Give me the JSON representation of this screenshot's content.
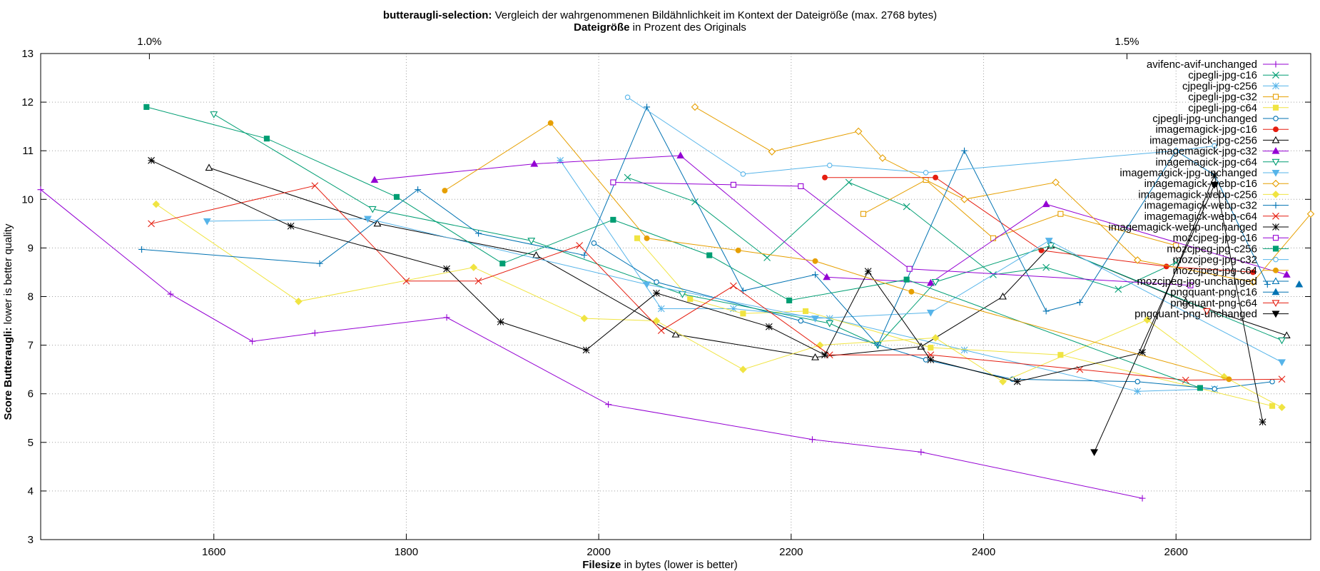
{
  "chart_data": {
    "type": "line",
    "title_bold": "butteraugli-selection:",
    "title_rest": " Vergleich der wahrgenommenen Bildähnlichkeit im Kontext der Dateigröße (max. 2768 bytes)",
    "x2label_bold": "Dateigröße",
    "x2label_rest": " in Prozent des Originals",
    "xlabel_bold": "Filesize",
    "xlabel_rest": " in bytes (lower is better)",
    "ylabel_bold": "Score Butteraugli:",
    "ylabel_rest": " lower is better quality",
    "xlim": [
      1420,
      2740
    ],
    "ylim": [
      3,
      13
    ],
    "xticks": [
      1600,
      1800,
      2000,
      2200,
      2400,
      2600
    ],
    "yticks": [
      3,
      4,
      5,
      6,
      7,
      8,
      9,
      10,
      11,
      12,
      13
    ],
    "x2ticks": [
      {
        "label": "1.0%",
        "x": 1533
      },
      {
        "label": "1.5%",
        "x": 2549
      }
    ],
    "grid": true,
    "legend_position": "top-right",
    "series": [
      {
        "name": "avifenc-avif-unchanged",
        "color": "#9400d3",
        "marker": "plus",
        "points": [
          [
            1420,
            10.2
          ],
          [
            1555,
            8.05
          ],
          [
            1640,
            7.08
          ],
          [
            1705,
            7.25
          ],
          [
            1842,
            7.57
          ],
          [
            2010,
            5.78
          ],
          [
            2222,
            5.06
          ],
          [
            2335,
            4.8
          ],
          [
            2565,
            3.85
          ]
        ]
      },
      {
        "name": "cjpegli-jpg-c16",
        "color": "#009e73",
        "marker": "x",
        "points": [
          [
            2030,
            10.45
          ],
          [
            2100,
            9.95
          ],
          [
            2175,
            8.8
          ],
          [
            2260,
            10.35
          ],
          [
            2320,
            9.85
          ],
          [
            2410,
            8.45
          ],
          [
            2465,
            8.6
          ],
          [
            2540,
            8.15
          ],
          [
            2600,
            8.7
          ]
        ]
      },
      {
        "name": "cjpegli-jpg-c256",
        "color": "#56b4e9",
        "marker": "star",
        "points": [
          [
            1960,
            10.8
          ],
          [
            2065,
            7.75
          ],
          [
            2140,
            7.75
          ],
          [
            2240,
            7.55
          ],
          [
            2380,
            6.9
          ],
          [
            2560,
            6.05
          ],
          [
            2640,
            6.1
          ]
        ]
      },
      {
        "name": "cjpegli-jpg-c32",
        "color": "#e69f00",
        "marker": "square-open",
        "points": [
          [
            2275,
            9.7
          ],
          [
            2340,
            10.4
          ],
          [
            2410,
            9.2
          ],
          [
            2480,
            9.7
          ],
          [
            2600,
            9.05
          ]
        ]
      },
      {
        "name": "cjpegli-jpg-c64",
        "color": "#f0e442",
        "marker": "square",
        "points": [
          [
            2040,
            9.2
          ],
          [
            2095,
            7.95
          ],
          [
            2150,
            7.65
          ],
          [
            2215,
            7.7
          ],
          [
            2345,
            6.95
          ],
          [
            2480,
            6.8
          ],
          [
            2700,
            5.75
          ]
        ]
      },
      {
        "name": "cjpegli-jpg-unchanged",
        "color": "#0072b2",
        "marker": "circle-open",
        "points": [
          [
            1995,
            9.1
          ],
          [
            2060,
            8.3
          ],
          [
            2210,
            7.5
          ],
          [
            2340,
            6.7
          ],
          [
            2430,
            6.3
          ],
          [
            2560,
            6.25
          ],
          [
            2640,
            6.1
          ],
          [
            2700,
            6.25
          ]
        ]
      },
      {
        "name": "imagemagick-jpg-c16",
        "color": "#e51e10",
        "marker": "circle",
        "points": [
          [
            2235,
            10.45
          ],
          [
            2350,
            10.45
          ],
          [
            2460,
            8.95
          ],
          [
            2590,
            8.62
          ],
          [
            2680,
            8.5
          ]
        ]
      },
      {
        "name": "imagemagick-jpg-c256",
        "color": "#000000",
        "marker": "triangle-open",
        "points": [
          [
            1595,
            10.65
          ],
          [
            1770,
            9.5
          ],
          [
            1935,
            8.85
          ],
          [
            2080,
            7.22
          ],
          [
            2225,
            6.75
          ],
          [
            2335,
            6.97
          ],
          [
            2420,
            8.0
          ],
          [
            2470,
            9.05
          ],
          [
            2610,
            7.9
          ],
          [
            2715,
            7.2
          ]
        ]
      },
      {
        "name": "imagemagick-jpg-c32",
        "color": "#9400d3",
        "marker": "triangle",
        "points": [
          [
            1767,
            10.4
          ],
          [
            1933,
            10.73
          ],
          [
            2085,
            10.9
          ],
          [
            2237,
            8.4
          ],
          [
            2345,
            8.28
          ],
          [
            2465,
            9.9
          ],
          [
            2715,
            8.45
          ]
        ]
      },
      {
        "name": "imagemagick-jpg-c64",
        "color": "#009e73",
        "marker": "triangle-down-open",
        "points": [
          [
            1600,
            11.75
          ],
          [
            1765,
            9.8
          ],
          [
            1930,
            9.15
          ],
          [
            2087,
            8.05
          ],
          [
            2240,
            7.45
          ],
          [
            2290,
            7.0
          ],
          [
            2350,
            8.3
          ],
          [
            2470,
            9.05
          ],
          [
            2710,
            7.1
          ]
        ]
      },
      {
        "name": "imagemagick-jpg-unchanged",
        "color": "#56b4e9",
        "marker": "triangle-down",
        "points": [
          [
            1593,
            9.55
          ],
          [
            1760,
            9.6
          ],
          [
            2050,
            8.25
          ],
          [
            2225,
            7.55
          ],
          [
            2345,
            7.67
          ],
          [
            2468,
            9.15
          ],
          [
            2710,
            6.65
          ]
        ]
      },
      {
        "name": "imagemagick-webp-c16",
        "color": "#e69f00",
        "marker": "diamond-open",
        "points": [
          [
            2100,
            11.9
          ],
          [
            2180,
            10.98
          ],
          [
            2270,
            11.4
          ],
          [
            2295,
            10.85
          ],
          [
            2380,
            10.0
          ],
          [
            2475,
            10.35
          ],
          [
            2560,
            8.75
          ],
          [
            2680,
            8.3
          ],
          [
            2740,
            9.7
          ]
        ]
      },
      {
        "name": "imagemagick-webp-c256",
        "color": "#f0e442",
        "marker": "diamond",
        "points": [
          [
            1540,
            9.9
          ],
          [
            1688,
            7.9
          ],
          [
            1870,
            8.6
          ],
          [
            1985,
            7.55
          ],
          [
            2060,
            7.5
          ],
          [
            2150,
            6.5
          ],
          [
            2230,
            7.0
          ],
          [
            2350,
            7.15
          ],
          [
            2420,
            6.25
          ],
          [
            2570,
            7.52
          ],
          [
            2650,
            6.35
          ],
          [
            2710,
            5.72
          ]
        ]
      },
      {
        "name": "imagemagick-webp-c32",
        "color": "#0072b2",
        "marker": "plus",
        "points": [
          [
            1525,
            8.97
          ],
          [
            1710,
            8.68
          ],
          [
            1812,
            10.2
          ],
          [
            1875,
            9.3
          ],
          [
            1985,
            8.85
          ],
          [
            2050,
            11.9
          ],
          [
            2150,
            8.12
          ],
          [
            2225,
            8.45
          ],
          [
            2290,
            7.0
          ],
          [
            2380,
            11.0
          ],
          [
            2465,
            7.7
          ],
          [
            2500,
            7.88
          ],
          [
            2600,
            11.0
          ],
          [
            2640,
            10.5
          ],
          [
            2695,
            8.25
          ]
        ]
      },
      {
        "name": "imagemagick-webp-c64",
        "color": "#e51e10",
        "marker": "x",
        "points": [
          [
            1535,
            9.5
          ],
          [
            1705,
            10.28
          ],
          [
            1800,
            8.32
          ],
          [
            1875,
            8.32
          ],
          [
            1980,
            9.05
          ],
          [
            2065,
            7.3
          ],
          [
            2140,
            8.22
          ],
          [
            2240,
            6.8
          ],
          [
            2345,
            6.8
          ],
          [
            2500,
            6.5
          ],
          [
            2610,
            6.28
          ],
          [
            2710,
            6.3
          ]
        ]
      },
      {
        "name": "imagemagick-webp-unchanged",
        "color": "#000000",
        "marker": "star",
        "points": [
          [
            1535,
            10.8
          ],
          [
            1680,
            9.45
          ],
          [
            1842,
            8.57
          ],
          [
            1898,
            7.48
          ],
          [
            1987,
            6.9
          ],
          [
            2060,
            8.07
          ],
          [
            2177,
            7.38
          ],
          [
            2235,
            6.8
          ],
          [
            2280,
            8.52
          ],
          [
            2345,
            6.7
          ],
          [
            2435,
            6.25
          ],
          [
            2565,
            6.85
          ],
          [
            2640,
            10.5
          ],
          [
            2690,
            5.42
          ]
        ]
      },
      {
        "name": "mozcjpeg-jpg-c16",
        "color": "#9400d3",
        "marker": "square-open",
        "points": [
          [
            2015,
            10.35
          ],
          [
            2140,
            10.3
          ],
          [
            2210,
            10.27
          ],
          [
            2323,
            8.57
          ],
          [
            2615,
            8.23
          ]
        ]
      },
      {
        "name": "mozcjpeg-jpg-c256",
        "color": "#009e73",
        "marker": "square",
        "points": [
          [
            1530,
            11.9
          ],
          [
            1655,
            11.25
          ],
          [
            1790,
            10.05
          ],
          [
            1900,
            8.68
          ],
          [
            2015,
            9.58
          ],
          [
            2115,
            8.85
          ],
          [
            2198,
            7.92
          ],
          [
            2320,
            8.35
          ],
          [
            2625,
            6.12
          ]
        ]
      },
      {
        "name": "mozcjpeg-jpg-c32",
        "color": "#56b4e9",
        "marker": "circle-open",
        "points": [
          [
            2030,
            12.1
          ],
          [
            2150,
            10.52
          ],
          [
            2240,
            10.7
          ],
          [
            2340,
            10.55
          ],
          [
            2600,
            11.0
          ],
          [
            2640,
            11.1
          ]
        ]
      },
      {
        "name": "mozcjpeg-jpg-c64",
        "color": "#e69f00",
        "marker": "circle",
        "points": [
          [
            1840,
            10.18
          ],
          [
            1950,
            11.57
          ],
          [
            2050,
            9.2
          ],
          [
            2145,
            8.95
          ],
          [
            2225,
            8.73
          ],
          [
            2325,
            8.1
          ],
          [
            2655,
            6.3
          ]
        ]
      },
      {
        "name": "mozcjpeg-jpg-unchanged",
        "color": "#0072b2",
        "marker": "triangle-open",
        "points": []
      },
      {
        "name": "pngquant-png-c16",
        "color": "#0072b2",
        "marker": "triangle",
        "points": [
          [
            2728,
            8.25
          ]
        ]
      },
      {
        "name": "pngquant-png-c64",
        "color": "#e51e10",
        "marker": "triangle-down-open",
        "points": [
          [
            2632,
            7.7
          ]
        ]
      },
      {
        "name": "pngquant-png-unchanged",
        "color": "#000000",
        "marker": "triangle-down",
        "points": [
          [
            2515,
            4.8
          ],
          [
            2640,
            10.3
          ]
        ]
      }
    ]
  }
}
